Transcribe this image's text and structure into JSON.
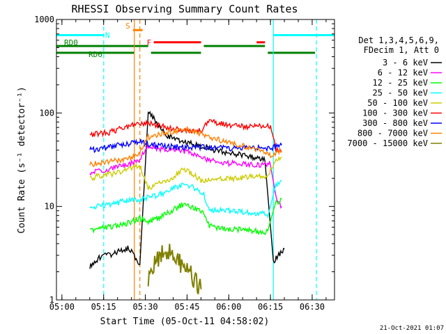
{
  "chart_data": {
    "type": "line",
    "title": "RHESSI Observing Summary Count Rates",
    "xlabel": "Start Time (05-Oct-11 04:58:02)",
    "ylabel": "Count Rate (s⁻¹ detector⁻¹)",
    "x_start": "04:58:02",
    "xlim_minutes": [
      0,
      100
    ],
    "yscale": "log",
    "ylim": [
      1,
      1000
    ],
    "xticks": [
      {
        "label": "05:00",
        "minute": 1.97
      },
      {
        "label": "05:15",
        "minute": 16.97
      },
      {
        "label": "05:30",
        "minute": 31.97
      },
      {
        "label": "05:45",
        "minute": 46.97
      },
      {
        "label": "06:00",
        "minute": 61.97
      },
      {
        "label": "06:15",
        "minute": 76.97
      },
      {
        "label": "06:30",
        "minute": 91.97
      }
    ],
    "yticks": [
      {
        "label": "1",
        "value": 1
      },
      {
        "label": "10",
        "value": 10
      },
      {
        "label": "100",
        "value": 100
      },
      {
        "label": "1000",
        "value": 1000
      }
    ],
    "legend_header": [
      "Det 1,3,4,5,6,9,",
      "FDecim 1, Att 0"
    ],
    "legend_position": "right",
    "footer_timestamp": "21-Oct-2021 01:07",
    "series": [
      {
        "name": "3 - 6 keV",
        "color": "#000000",
        "points": [
          [
            12,
            2.3
          ],
          [
            14,
            2.6
          ],
          [
            16,
            2.9
          ],
          [
            19,
            3.0
          ],
          [
            21,
            3.2
          ],
          [
            24,
            3.4
          ],
          [
            26,
            3.6
          ],
          [
            30,
            2.4
          ],
          [
            33,
            108
          ],
          [
            36,
            78
          ],
          [
            40,
            56
          ],
          [
            45,
            50
          ],
          [
            50,
            46
          ],
          [
            54,
            43
          ],
          [
            57,
            40
          ],
          [
            60,
            38
          ],
          [
            63,
            37
          ],
          [
            66,
            36
          ],
          [
            69,
            34
          ],
          [
            72,
            33
          ],
          [
            75,
            32
          ],
          [
            78,
            2.6
          ],
          [
            80,
            3.0
          ],
          [
            82,
            3.5
          ]
        ]
      },
      {
        "name": "6 - 12 keV",
        "color": "#ff00ff",
        "points": [
          [
            12,
            23
          ],
          [
            15,
            24
          ],
          [
            19,
            25
          ],
          [
            22,
            27
          ],
          [
            26,
            28
          ],
          [
            30,
            32
          ],
          [
            33,
            45
          ],
          [
            36,
            42
          ],
          [
            40,
            40
          ],
          [
            44,
            40
          ],
          [
            48,
            38
          ],
          [
            52,
            34
          ],
          [
            55,
            31
          ],
          [
            58,
            30
          ],
          [
            62,
            29
          ],
          [
            66,
            29
          ],
          [
            70,
            28
          ],
          [
            74,
            28
          ],
          [
            77,
            29
          ],
          [
            79,
            12
          ],
          [
            81,
            10
          ]
        ]
      },
      {
        "name": "12 - 25 keV",
        "color": "#00ff00",
        "points": [
          [
            12,
            5.5
          ],
          [
            15,
            5.8
          ],
          [
            19,
            6.0
          ],
          [
            22,
            6.2
          ],
          [
            26,
            6.7
          ],
          [
            30,
            7.5
          ],
          [
            33,
            7.0
          ],
          [
            36,
            7.4
          ],
          [
            40,
            8.5
          ],
          [
            44,
            10.0
          ],
          [
            46,
            10.6
          ],
          [
            49,
            9.8
          ],
          [
            53,
            8.3
          ],
          [
            55,
            6.2
          ],
          [
            60,
            5.8
          ],
          [
            66,
            5.7
          ],
          [
            71,
            5.5
          ],
          [
            76,
            5.3
          ],
          [
            79,
            11
          ],
          [
            81,
            12
          ]
        ]
      },
      {
        "name": "25 - 50 keV",
        "color": "#00ffff",
        "points": [
          [
            12,
            9.5
          ],
          [
            15,
            10
          ],
          [
            19,
            10.5
          ],
          [
            22,
            11
          ],
          [
            26,
            11.5
          ],
          [
            30,
            12
          ],
          [
            33,
            12.5
          ],
          [
            36,
            13
          ],
          [
            40,
            14.5
          ],
          [
            44,
            16.5
          ],
          [
            46,
            17
          ],
          [
            49,
            16
          ],
          [
            53,
            13.5
          ],
          [
            55,
            9.2
          ],
          [
            60,
            9.0
          ],
          [
            66,
            8.8
          ],
          [
            71,
            8.5
          ],
          [
            76,
            8.2
          ],
          [
            79,
            17
          ],
          [
            81,
            19
          ]
        ]
      },
      {
        "name": "50 - 100 keV",
        "color": "#cccc00",
        "points": [
          [
            12,
            20
          ],
          [
            15,
            21
          ],
          [
            19,
            22
          ],
          [
            22,
            23
          ],
          [
            26,
            25
          ],
          [
            30,
            27
          ],
          [
            33,
            16
          ],
          [
            36,
            17
          ],
          [
            40,
            19
          ],
          [
            44,
            23
          ],
          [
            46,
            25
          ],
          [
            49,
            22
          ],
          [
            53,
            18
          ],
          [
            55,
            20
          ],
          [
            60,
            20
          ],
          [
            66,
            20
          ],
          [
            71,
            21
          ],
          [
            76,
            21
          ],
          [
            79,
            32
          ],
          [
            81,
            34
          ]
        ]
      },
      {
        "name": "100 - 300 keV",
        "color": "#ff0000",
        "points": [
          [
            12,
            58
          ],
          [
            15,
            60
          ],
          [
            19,
            62
          ],
          [
            22,
            66
          ],
          [
            26,
            72
          ],
          [
            30,
            76
          ],
          [
            33,
            78
          ],
          [
            36,
            74
          ],
          [
            40,
            70
          ],
          [
            44,
            66
          ],
          [
            48,
            64
          ],
          [
            52,
            64
          ],
          [
            55,
            82
          ],
          [
            58,
            78
          ],
          [
            62,
            74
          ],
          [
            66,
            72
          ],
          [
            70,
            72
          ],
          [
            74,
            72
          ],
          [
            77,
            72
          ],
          [
            79,
            40
          ],
          [
            81,
            38
          ]
        ]
      },
      {
        "name": "300 - 800 keV",
        "color": "#0000ff",
        "points": [
          [
            12,
            40
          ],
          [
            15,
            41
          ],
          [
            19,
            43
          ],
          [
            22,
            45
          ],
          [
            26,
            47
          ],
          [
            30,
            50
          ],
          [
            33,
            46
          ],
          [
            36,
            45
          ],
          [
            40,
            44
          ],
          [
            44,
            43
          ],
          [
            48,
            43
          ],
          [
            52,
            43
          ],
          [
            55,
            43
          ],
          [
            58,
            42
          ],
          [
            62,
            42
          ],
          [
            66,
            42
          ],
          [
            70,
            42
          ],
          [
            74,
            42
          ],
          [
            77,
            42
          ],
          [
            79,
            44
          ],
          [
            81,
            45
          ]
        ]
      },
      {
        "name": "800 - 7000 keV",
        "color": "#ff8000",
        "points": [
          [
            12,
            28
          ],
          [
            15,
            29
          ],
          [
            19,
            30
          ],
          [
            22,
            31
          ],
          [
            26,
            32
          ],
          [
            30,
            38
          ],
          [
            33,
            55
          ],
          [
            36,
            58
          ],
          [
            40,
            62
          ],
          [
            44,
            65
          ],
          [
            47,
            66
          ],
          [
            50,
            63
          ],
          [
            54,
            57
          ],
          [
            58,
            52
          ],
          [
            62,
            48
          ],
          [
            66,
            45
          ],
          [
            70,
            42
          ],
          [
            74,
            38
          ],
          [
            77,
            35
          ],
          [
            79,
            36
          ],
          [
            81,
            39
          ]
        ]
      },
      {
        "name": "7000 - 15000 keV",
        "color": "#808000",
        "points": [
          [
            33,
            1.6
          ],
          [
            34,
            2.0
          ],
          [
            36,
            2.7
          ],
          [
            38,
            3.1
          ],
          [
            40,
            3.2
          ],
          [
            42,
            3.1
          ],
          [
            44,
            2.6
          ],
          [
            46,
            2.2
          ],
          [
            48,
            1.9
          ],
          [
            50,
            1.6
          ],
          [
            52,
            1.3
          ]
        ]
      }
    ],
    "flag_bars": [
      {
        "label": "N",
        "color": "#00ffff",
        "y_value": 680,
        "segments": [
          [
            0,
            17
          ],
          [
            78,
            100
          ]
        ]
      },
      {
        "label": "S",
        "color": "#ff8000",
        "y_value": 770,
        "segments": [
          [
            27.5,
            31
          ]
        ]
      },
      {
        "label": "F",
        "color": "#ff0000",
        "y_value": 570,
        "segments": [
          [
            35,
            52
          ],
          [
            72,
            75
          ]
        ]
      },
      {
        "label": "RD0",
        "color": "#008000",
        "y_value": 520,
        "segments": [
          [
            0,
            33
          ],
          [
            53,
            75
          ]
        ]
      },
      {
        "label": "RD6",
        "color": "#008000",
        "y_value": 440,
        "segments": [
          [
            0,
            28
          ],
          [
            34,
            52
          ],
          [
            76,
            93
          ]
        ]
      }
    ],
    "vlines": [
      {
        "minute": 17,
        "color": "#00ffff",
        "style": "dashed"
      },
      {
        "minute": 28,
        "color": "#ff8000",
        "style": "solid"
      },
      {
        "minute": 30,
        "color": "#ff8000",
        "style": "dashed"
      },
      {
        "minute": 78,
        "color": "#00ffff",
        "style": "solid"
      },
      {
        "minute": 93.5,
        "color": "#00ffff",
        "style": "dashed"
      }
    ]
  }
}
